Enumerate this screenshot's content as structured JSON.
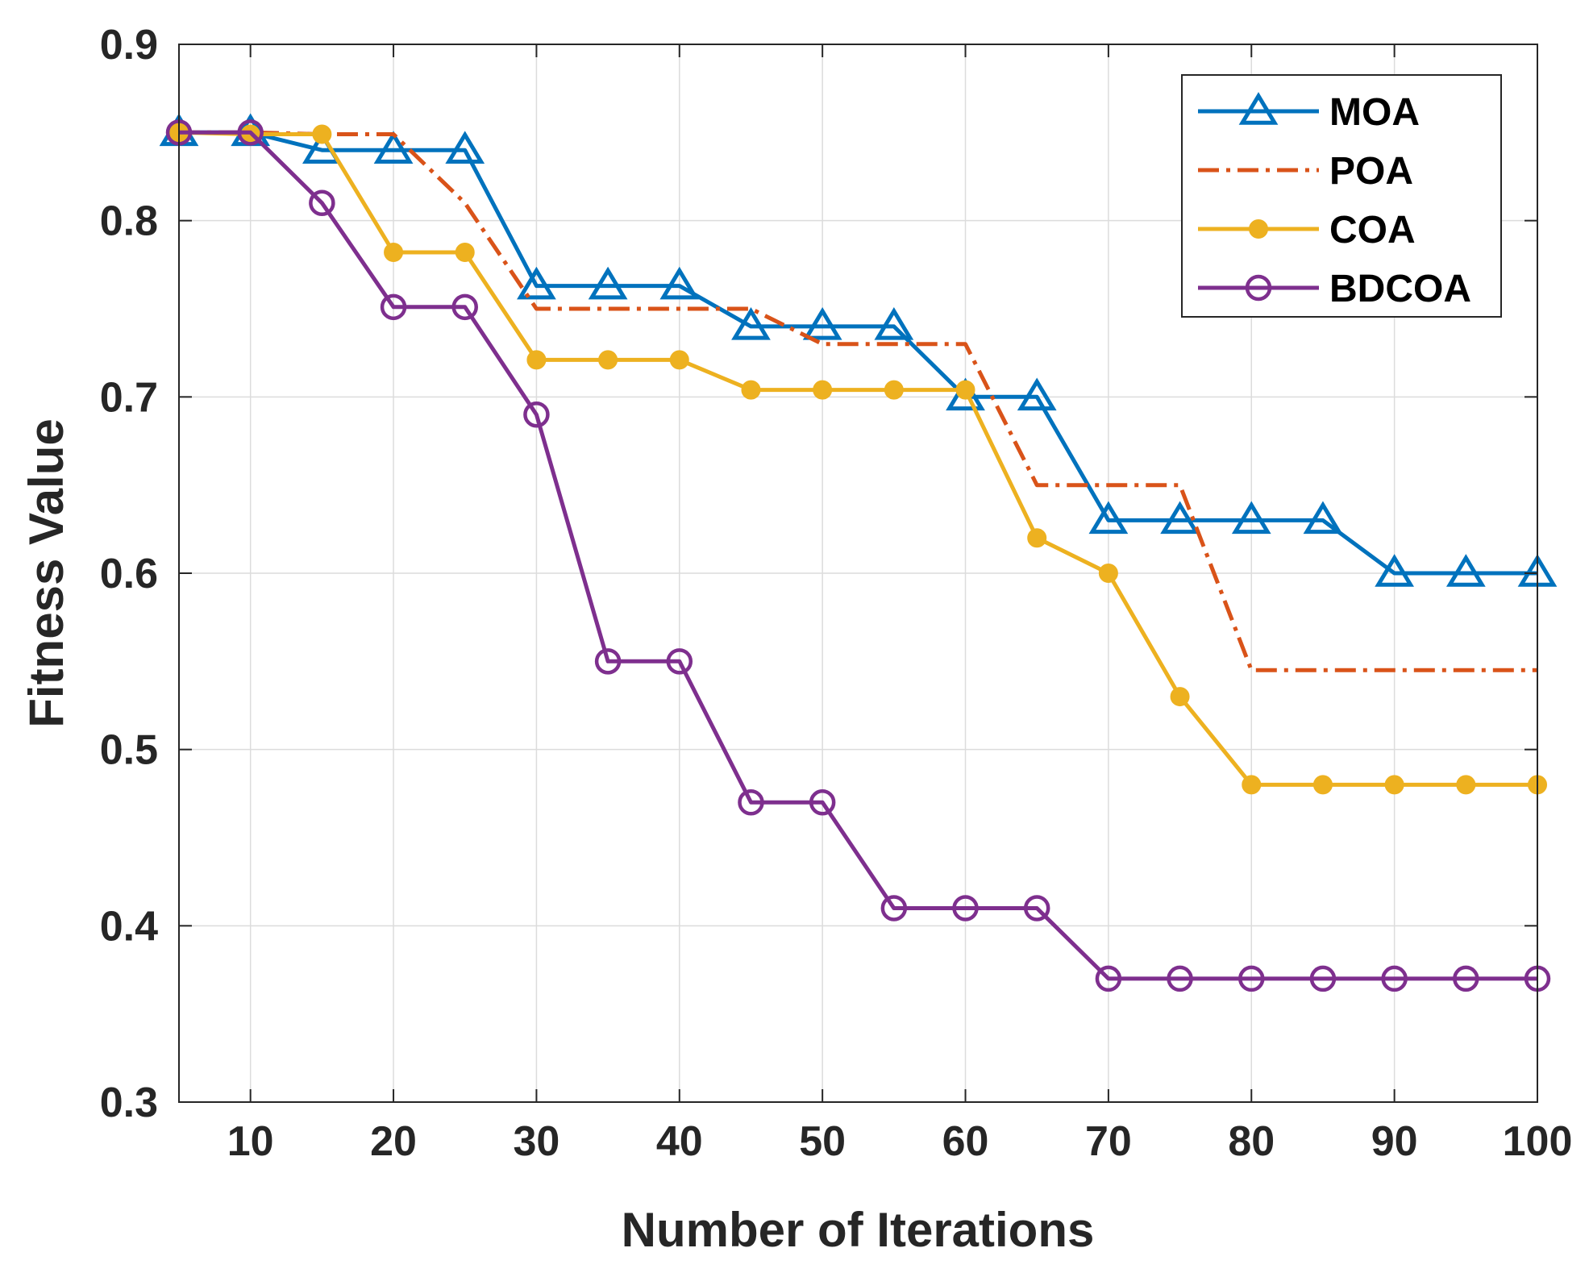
{
  "chart_data": {
    "type": "line",
    "title": "",
    "xlabel": "Number of Iterations",
    "ylabel": "Fitness Value",
    "xlim": [
      5,
      100
    ],
    "ylim": [
      0.3,
      0.9
    ],
    "xticks": [
      10,
      20,
      30,
      40,
      50,
      60,
      70,
      80,
      90,
      100
    ],
    "yticks": [
      0.3,
      0.4,
      0.5,
      0.6,
      0.7,
      0.8,
      0.9
    ],
    "grid": true,
    "legend_position": "top-right",
    "series": [
      {
        "name": "MOA",
        "color": "#0072BD",
        "style": "solid",
        "marker": "triangle",
        "x": [
          5,
          10,
          15,
          20,
          25,
          30,
          35,
          40,
          45,
          50,
          55,
          60,
          65,
          70,
          75,
          80,
          85,
          90,
          95,
          100
        ],
        "values": [
          0.85,
          0.85,
          0.84,
          0.84,
          0.84,
          0.763,
          0.763,
          0.763,
          0.74,
          0.74,
          0.74,
          0.7,
          0.7,
          0.63,
          0.63,
          0.63,
          0.63,
          0.6,
          0.6,
          0.6
        ]
      },
      {
        "name": "POA",
        "color": "#D95319",
        "style": "dashdot",
        "marker": "none",
        "x": [
          5,
          10,
          15,
          20,
          25,
          30,
          35,
          40,
          45,
          50,
          55,
          60,
          65,
          70,
          75,
          80,
          85,
          90,
          95,
          100
        ],
        "values": [
          0.85,
          0.85,
          0.849,
          0.849,
          0.81,
          0.75,
          0.75,
          0.75,
          0.75,
          0.73,
          0.73,
          0.73,
          0.65,
          0.65,
          0.65,
          0.545,
          0.545,
          0.545,
          0.545,
          0.545
        ]
      },
      {
        "name": "COA",
        "color": "#EDB120",
        "style": "solid",
        "marker": "dot",
        "x": [
          5,
          10,
          15,
          20,
          25,
          30,
          35,
          40,
          45,
          50,
          55,
          60,
          65,
          70,
          75,
          80,
          85,
          90,
          95,
          100
        ],
        "values": [
          0.85,
          0.849,
          0.849,
          0.782,
          0.782,
          0.721,
          0.721,
          0.721,
          0.704,
          0.704,
          0.704,
          0.704,
          0.62,
          0.6,
          0.53,
          0.48,
          0.48,
          0.48,
          0.48,
          0.48
        ]
      },
      {
        "name": "BDCOA",
        "color": "#7E2F8E",
        "style": "solid",
        "marker": "circle",
        "x": [
          5,
          10,
          15,
          20,
          25,
          30,
          35,
          40,
          45,
          50,
          55,
          60,
          65,
          70,
          75,
          80,
          85,
          90,
          95,
          100
        ],
        "values": [
          0.85,
          0.85,
          0.81,
          0.751,
          0.751,
          0.69,
          0.55,
          0.55,
          0.47,
          0.47,
          0.41,
          0.41,
          0.41,
          0.37,
          0.37,
          0.37,
          0.37,
          0.37,
          0.37,
          0.37
        ]
      }
    ]
  }
}
